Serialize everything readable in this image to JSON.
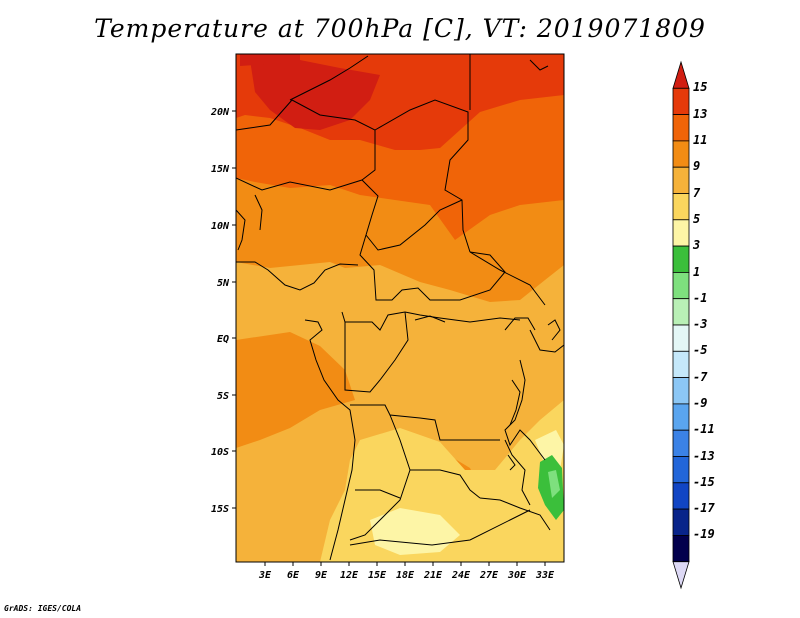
{
  "title": "Temperature at 700hPa [C], VT: 2019071809",
  "footer": "GrADS: IGES/COLA",
  "map": {
    "lat_labels": [
      "20N",
      "15N",
      "10N",
      "5N",
      "EQ",
      "5S",
      "10S",
      "15S"
    ],
    "lon_labels": [
      "3E",
      "6E",
      "9E",
      "12E",
      "15E",
      "18E",
      "21E",
      "24E",
      "27E",
      "30E",
      "33E"
    ],
    "lat_range": [
      -20,
      25
    ],
    "lon_range": [
      0,
      35
    ]
  },
  "colorbar": {
    "labels": [
      "15",
      "13",
      "11",
      "9",
      "7",
      "5",
      "3",
      "1",
      "-1",
      "-3",
      "-5",
      "-7",
      "-9",
      "-11",
      "-13",
      "-15",
      "-17",
      "-19"
    ],
    "colors": [
      "#d11e12",
      "#e53a0a",
      "#f06408",
      "#f28c14",
      "#f5b23a",
      "#fad65e",
      "#fdf5a6",
      "#3bbf3b",
      "#7ee07e",
      "#b9f0b6",
      "#e4f7f6",
      "#c5e8fa",
      "#8cc7f5",
      "#5aa5ef",
      "#3b82e6",
      "#2266d9",
      "#1145c4",
      "#08248a",
      "#02004d",
      "#ddd9f5"
    ]
  }
}
